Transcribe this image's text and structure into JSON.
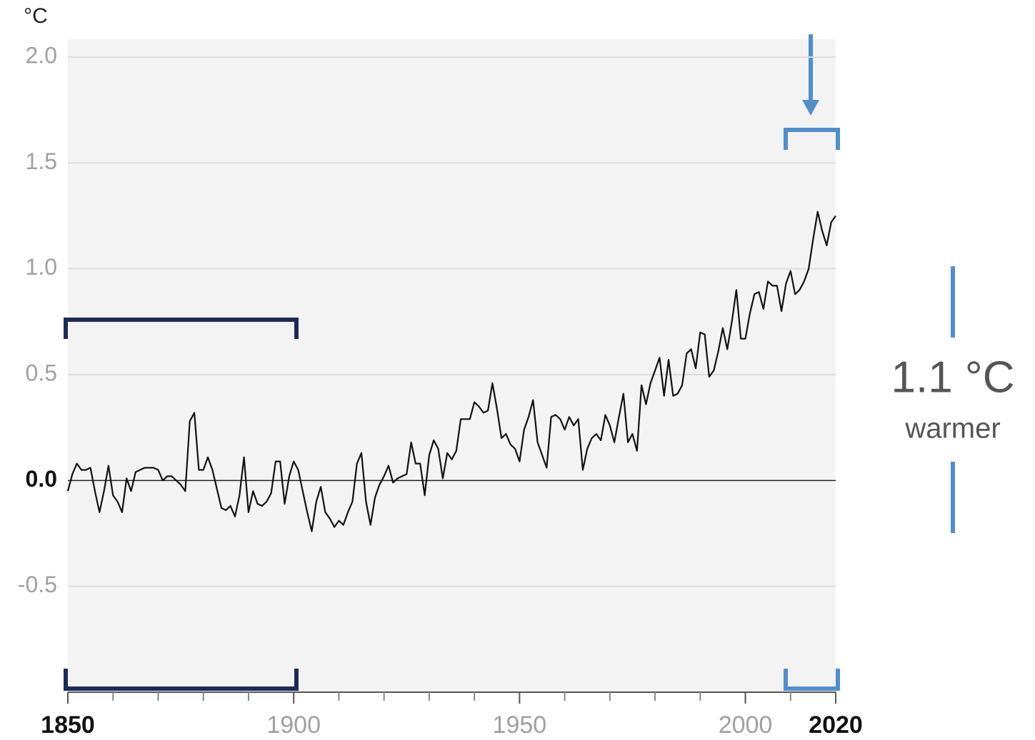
{
  "chart_data": {
    "type": "line",
    "unit_label": "°C",
    "annotation": "1.1 °C",
    "annotation_sub": "warmer",
    "color": "#111111",
    "grid": true,
    "x": [
      1850,
      1851,
      1852,
      1853,
      1854,
      1855,
      1856,
      1857,
      1858,
      1859,
      1860,
      1861,
      1862,
      1863,
      1864,
      1865,
      1866,
      1867,
      1868,
      1869,
      1870,
      1871,
      1872,
      1873,
      1874,
      1875,
      1876,
      1877,
      1878,
      1879,
      1880,
      1881,
      1882,
      1883,
      1884,
      1885,
      1886,
      1887,
      1888,
      1889,
      1890,
      1891,
      1892,
      1893,
      1894,
      1895,
      1896,
      1897,
      1898,
      1899,
      1900,
      1901,
      1902,
      1903,
      1904,
      1905,
      1906,
      1907,
      1908,
      1909,
      1910,
      1911,
      1912,
      1913,
      1914,
      1915,
      1916,
      1917,
      1918,
      1919,
      1920,
      1921,
      1922,
      1923,
      1924,
      1925,
      1926,
      1927,
      1928,
      1929,
      1930,
      1931,
      1932,
      1933,
      1934,
      1935,
      1936,
      1937,
      1938,
      1939,
      1940,
      1941,
      1942,
      1943,
      1944,
      1945,
      1946,
      1947,
      1948,
      1949,
      1950,
      1951,
      1952,
      1953,
      1954,
      1955,
      1956,
      1957,
      1958,
      1959,
      1960,
      1961,
      1962,
      1963,
      1964,
      1965,
      1966,
      1967,
      1968,
      1969,
      1970,
      1971,
      1972,
      1973,
      1974,
      1975,
      1976,
      1977,
      1978,
      1979,
      1980,
      1981,
      1982,
      1983,
      1984,
      1985,
      1986,
      1987,
      1988,
      1989,
      1990,
      1991,
      1992,
      1993,
      1994,
      1995,
      1996,
      1997,
      1998,
      1999,
      2000,
      2001,
      2002,
      2003,
      2004,
      2005,
      2006,
      2007,
      2008,
      2009,
      2010,
      2011,
      2012,
      2013,
      2014,
      2015,
      2016,
      2017,
      2018,
      2019,
      2020
    ],
    "values": [
      -0.05,
      0.03,
      0.08,
      0.05,
      0.05,
      0.06,
      -0.05,
      -0.15,
      -0.05,
      0.07,
      -0.07,
      -0.1,
      -0.15,
      0.01,
      -0.05,
      0.04,
      0.05,
      0.06,
      0.06,
      0.06,
      0.05,
      0.0,
      0.02,
      0.02,
      0.0,
      -0.02,
      -0.05,
      0.28,
      0.32,
      0.05,
      0.05,
      0.11,
      0.05,
      -0.04,
      -0.13,
      -0.14,
      -0.12,
      -0.17,
      -0.07,
      0.11,
      -0.15,
      -0.05,
      -0.11,
      -0.12,
      -0.1,
      -0.06,
      0.09,
      0.09,
      -0.11,
      0.02,
      0.09,
      0.05,
      -0.05,
      -0.15,
      -0.24,
      -0.1,
      -0.03,
      -0.15,
      -0.18,
      -0.22,
      -0.19,
      -0.21,
      -0.15,
      -0.1,
      0.08,
      0.13,
      -0.1,
      -0.21,
      -0.08,
      -0.02,
      0.02,
      0.07,
      -0.01,
      0.01,
      0.02,
      0.03,
      0.18,
      0.08,
      0.08,
      -0.07,
      0.12,
      0.19,
      0.15,
      0.01,
      0.13,
      0.1,
      0.14,
      0.29,
      0.29,
      0.29,
      0.37,
      0.35,
      0.32,
      0.33,
      0.46,
      0.34,
      0.2,
      0.22,
      0.17,
      0.15,
      0.09,
      0.24,
      0.3,
      0.38,
      0.18,
      0.12,
      0.06,
      0.3,
      0.31,
      0.29,
      0.24,
      0.3,
      0.26,
      0.29,
      0.05,
      0.15,
      0.2,
      0.22,
      0.19,
      0.31,
      0.26,
      0.18,
      0.3,
      0.41,
      0.18,
      0.22,
      0.14,
      0.45,
      0.36,
      0.46,
      0.52,
      0.58,
      0.4,
      0.57,
      0.4,
      0.41,
      0.45,
      0.6,
      0.62,
      0.53,
      0.7,
      0.69,
      0.49,
      0.52,
      0.61,
      0.72,
      0.62,
      0.75,
      0.9,
      0.67,
      0.67,
      0.79,
      0.88,
      0.89,
      0.81,
      0.94,
      0.92,
      0.92,
      0.8,
      0.93,
      0.99,
      0.88,
      0.9,
      0.94,
      1.0,
      1.14,
      1.27,
      1.18,
      1.11,
      1.22,
      1.25
    ],
    "xlim": [
      1850,
      2020
    ],
    "xticks": [
      1850,
      1900,
      1950,
      2000,
      2020
    ],
    "xminor_ticks": [
      1860,
      1870,
      1880,
      1890,
      1910,
      1920,
      1930,
      1940,
      1960,
      1970,
      1980,
      1990,
      2010
    ],
    "ylim": [
      -1,
      2
    ],
    "yticks": [
      {
        "value": 2,
        "label": "2.0"
      },
      {
        "value": 1.5,
        "label": "1.5"
      },
      {
        "value": 1,
        "label": "1.0"
      },
      {
        "value": 0.5,
        "label": "0.5"
      },
      {
        "value": 0,
        "label": "0.0"
      },
      -0.5
    ]
  }
}
